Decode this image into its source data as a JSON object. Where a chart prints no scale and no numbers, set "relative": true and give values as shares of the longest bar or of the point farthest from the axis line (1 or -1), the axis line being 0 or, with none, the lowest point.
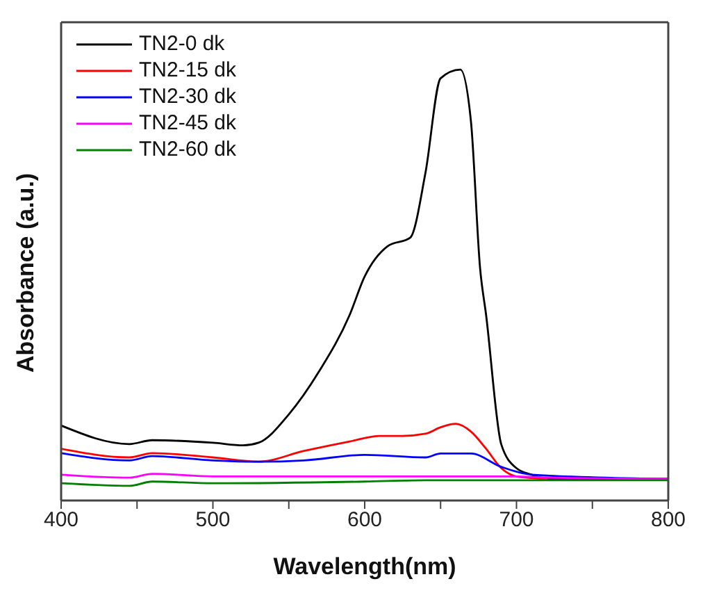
{
  "chart_data": {
    "type": "line",
    "relative": true,
    "xlabel": "Wavelength(nm)",
    "ylabel": "Absorbance (a.u.)",
    "xlim": [
      400,
      800
    ],
    "xticks": [
      400,
      {
        "value": 450,
        "label": null
      },
      500,
      {
        "value": 550,
        "label": null
      },
      600,
      {
        "value": 650,
        "label": null
      },
      700,
      {
        "value": 750,
        "label": null
      },
      800
    ],
    "legend": "top left",
    "grid": false,
    "marker": "none",
    "line_style": "solid",
    "series": [
      {
        "name": "TN2-0 dk",
        "color": "#000000",
        "x": [
          400,
          445,
          460,
          500,
          520,
          530,
          550,
          570,
          590,
          600,
          615,
          630,
          640,
          650,
          663,
          670,
          676,
          680,
          690,
          700,
          710,
          720,
          750,
          800
        ],
        "values": [
          0.174,
          0.131,
          0.14,
          0.134,
          0.128,
          0.134,
          0.2,
          0.3,
          0.43,
          0.52,
          0.59,
          0.61,
          0.76,
          0.98,
          1,
          0.88,
          0.54,
          0.43,
          0.13,
          0.075,
          0.06,
          0.05,
          0.05,
          0.05
        ]
      },
      {
        "name": "TN2-15 dk",
        "color": "#ff0000",
        "x": [
          400,
          445,
          460,
          500,
          530,
          560,
          590,
          610,
          625,
          640,
          650,
          660,
          670,
          680,
          690,
          700,
          720
        ],
        "values": [
          0.12,
          0.1,
          0.11,
          0.1,
          0.09,
          0.115,
          0.137,
          0.15,
          0.15,
          0.155,
          0.17,
          0.178,
          0.16,
          0.12,
          0.075,
          0.056,
          0.05
        ]
      },
      {
        "name": "TN2-30 dk",
        "color": "#0000ff",
        "x": [
          400,
          445,
          460,
          500,
          530,
          560,
          600,
          640,
          650,
          670,
          690,
          710,
          800
        ],
        "values": [
          0.11,
          0.093,
          0.103,
          0.093,
          0.09,
          0.093,
          0.106,
          0.1,
          0.109,
          0.109,
          0.078,
          0.06,
          0.05
        ]
      },
      {
        "name": "TN2-45 dk",
        "color": "#ff00ff",
        "x": [
          400,
          445,
          460,
          500,
          600,
          700,
          720,
          800
        ],
        "values": [
          0.06,
          0.053,
          0.062,
          0.056,
          0.056,
          0.056,
          0.053,
          0.05
        ]
      },
      {
        "name": "TN2-60 dk",
        "color": "#008000",
        "x": [
          400,
          445,
          460,
          500,
          600,
          640,
          800
        ],
        "values": [
          0.04,
          0.034,
          0.044,
          0.04,
          0.044,
          0.047,
          0.047
        ]
      }
    ]
  }
}
